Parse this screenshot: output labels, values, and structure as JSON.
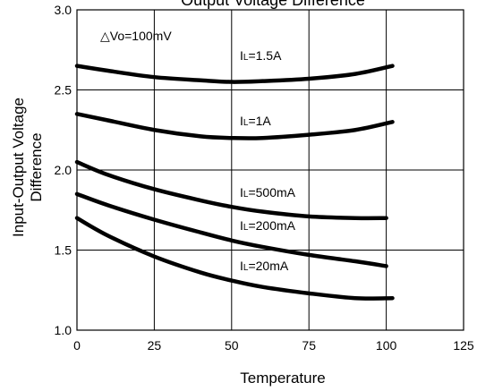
{
  "chart_data": {
    "type": "line",
    "title": "Output Voltage Difference",
    "xlabel": "Temperature",
    "ylabel": "Input-Output Voltage Difference",
    "xlim": [
      0,
      125
    ],
    "ylim": [
      1.0,
      3.0
    ],
    "x_ticks": [
      "0",
      "25",
      "50",
      "75",
      "100",
      "125"
    ],
    "y_ticks": [
      "1.0",
      "1.5",
      "2.0",
      "2.5",
      "3.0"
    ],
    "grid": true,
    "condition": "△Vo=100mV",
    "series": [
      {
        "name": "IL=1.5A",
        "x": [
          0,
          10,
          25,
          40,
          50,
          60,
          75,
          90,
          102
        ],
        "y": [
          2.65,
          2.62,
          2.58,
          2.56,
          2.55,
          2.555,
          2.57,
          2.6,
          2.65
        ]
      },
      {
        "name": "IL=1A",
        "x": [
          0,
          10,
          25,
          40,
          50,
          60,
          75,
          90,
          102
        ],
        "y": [
          2.35,
          2.31,
          2.25,
          2.21,
          2.2,
          2.2,
          2.22,
          2.25,
          2.3
        ]
      },
      {
        "name": "IL=500mA",
        "x": [
          0,
          10,
          25,
          40,
          50,
          60,
          75,
          90,
          100
        ],
        "y": [
          2.05,
          1.97,
          1.88,
          1.81,
          1.77,
          1.74,
          1.71,
          1.7,
          1.7
        ]
      },
      {
        "name": "IL=200mA",
        "x": [
          0,
          10,
          25,
          40,
          50,
          60,
          75,
          90,
          100
        ],
        "y": [
          1.85,
          1.78,
          1.69,
          1.61,
          1.56,
          1.52,
          1.47,
          1.43,
          1.4
        ]
      },
      {
        "name": "IL=20mA",
        "x": [
          0,
          10,
          25,
          40,
          50,
          60,
          75,
          90,
          102
        ],
        "y": [
          1.7,
          1.59,
          1.46,
          1.36,
          1.31,
          1.27,
          1.23,
          1.2,
          1.2
        ]
      }
    ]
  }
}
